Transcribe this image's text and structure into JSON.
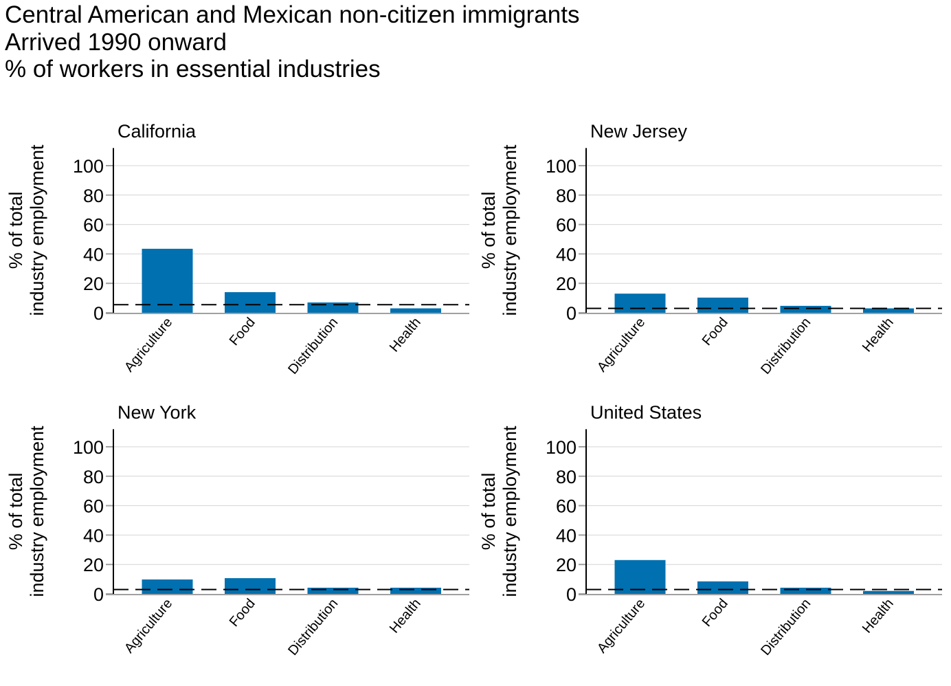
{
  "title": {
    "lines": [
      "Central American and Mexican non-citizen immigrants",
      "Arrived 1990 onward",
      "% of workers in essential industries"
    ]
  },
  "chart_data": [
    {
      "type": "bar",
      "title": "California",
      "categories": [
        "Agriculture",
        "Food",
        "Distribution",
        "Health"
      ],
      "values": [
        43.5,
        14,
        7,
        3
      ],
      "reference_line": 5.5,
      "ylabel": [
        "% of total",
        "industry employment"
      ],
      "xlabel": "",
      "yticks": [
        0,
        20,
        40,
        60,
        80,
        100
      ],
      "ylim": [
        0,
        112
      ],
      "grid": true
    },
    {
      "type": "bar",
      "title": "New Jersey",
      "categories": [
        "Agriculture",
        "Food",
        "Distribution",
        "Health"
      ],
      "values": [
        13,
        10.3,
        4.7,
        3
      ],
      "reference_line": 3,
      "ylabel": [
        "% of total",
        "industry employment"
      ],
      "xlabel": "",
      "yticks": [
        0,
        20,
        40,
        60,
        80,
        100
      ],
      "ylim": [
        0,
        112
      ],
      "grid": true
    },
    {
      "type": "bar",
      "title": "New York",
      "categories": [
        "Agriculture",
        "Food",
        "Distribution",
        "Health"
      ],
      "values": [
        9.8,
        10.7,
        4.2,
        4.2
      ],
      "reference_line": 3,
      "ylabel": [
        "% of total",
        "industry employment"
      ],
      "xlabel": "",
      "yticks": [
        0,
        20,
        40,
        60,
        80,
        100
      ],
      "ylim": [
        0,
        112
      ],
      "grid": true
    },
    {
      "type": "bar",
      "title": "United States",
      "categories": [
        "Agriculture",
        "Food",
        "Distribution",
        "Health"
      ],
      "values": [
        23,
        8.5,
        4.2,
        2
      ],
      "reference_line": 3,
      "ylabel": [
        "% of total",
        "industry employment"
      ],
      "xlabel": "",
      "yticks": [
        0,
        20,
        40,
        60,
        80,
        100
      ],
      "ylim": [
        0,
        112
      ],
      "grid": true
    }
  ],
  "colors": {
    "bar": "#0070b0",
    "grid": "#d4d4d4",
    "axis": "#a0a0a0",
    "reference_line": "#000000"
  }
}
